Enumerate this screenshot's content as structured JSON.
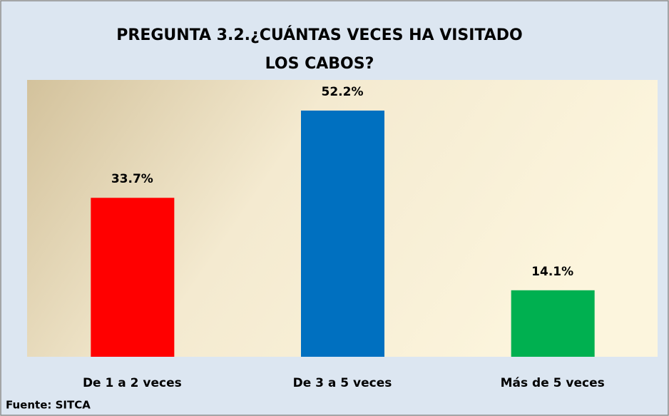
{
  "chart_data": {
    "type": "bar",
    "title": [
      "PREGUNTA 3.2.¿CUÁNTAS VECES HA VISITADO",
      "LOS CABOS?"
    ],
    "categories": [
      "De 1 a 2 veces",
      "De 3 a 5 veces",
      "Más de 5 veces"
    ],
    "values": [
      33.7,
      52.2,
      14.1
    ],
    "value_labels": [
      "33.7%",
      "52.2%",
      "14.1%"
    ],
    "colors": [
      "#ff0000",
      "#0070c0",
      "#00b050"
    ],
    "ylim": [
      0,
      58.7
    ],
    "source": "Fuente: SITCA"
  }
}
